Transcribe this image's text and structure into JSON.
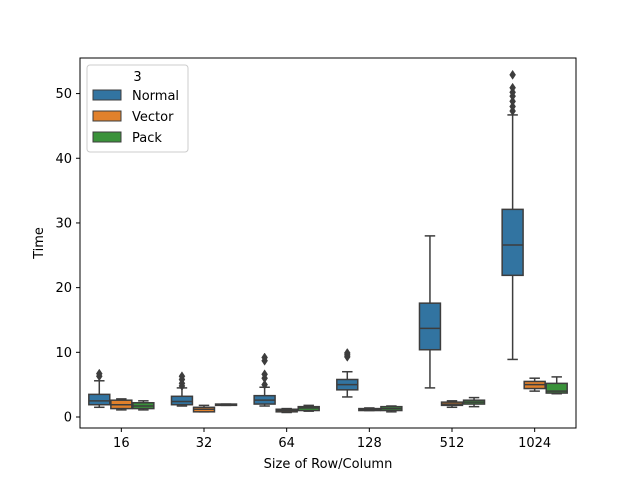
{
  "chart_data": {
    "type": "box",
    "xlabel": "Size of Row/Column",
    "ylabel": "Time",
    "categories": [
      "16",
      "32",
      "64",
      "128",
      "512",
      "1024"
    ],
    "ylim": [
      -1.7,
      55.5
    ],
    "yticks": [
      0,
      10,
      20,
      30,
      40,
      50
    ],
    "grid": false,
    "legend": {
      "title": "3",
      "placement": "top-left"
    },
    "series": [
      {
        "name": "Normal",
        "color": "#3274a1",
        "boxes": [
          {
            "q1": 1.9,
            "median": 2.5,
            "q3": 3.5,
            "whisker_low": 1.5,
            "whisker_high": 5.6,
            "outliers": [
              6.3,
              6.7
            ]
          },
          {
            "q1": 1.9,
            "median": 2.4,
            "q3": 3.2,
            "whisker_low": 1.7,
            "whisker_high": 4.5,
            "outliers": [
              4.8,
              5.2,
              5.8,
              6.3
            ]
          },
          {
            "q1": 2.0,
            "median": 2.6,
            "q3": 3.3,
            "whisker_low": 1.7,
            "whisker_high": 4.6,
            "outliers": [
              5.0,
              6.0,
              6.6,
              8.7,
              9.2
            ]
          },
          {
            "q1": 4.2,
            "median": 5.0,
            "q3": 5.8,
            "whisker_low": 3.1,
            "whisker_high": 7.0,
            "outliers": [
              9.3,
              9.6,
              9.9
            ]
          },
          {
            "q1": 10.4,
            "median": 13.7,
            "q3": 17.6,
            "whisker_low": 4.5,
            "whisker_high": 28.0,
            "outliers": []
          },
          {
            "q1": 21.9,
            "median": 26.6,
            "q3": 32.1,
            "whisker_low": 8.9,
            "whisker_high": 46.7,
            "outliers": [
              47.3,
              48.0,
              48.8,
              49.6,
              50.2,
              50.9,
              52.9
            ]
          }
        ]
      },
      {
        "name": "Vector",
        "color": "#e1812c",
        "boxes": [
          {
            "q1": 1.3,
            "median": 1.9,
            "q3": 2.6,
            "whisker_low": 1.1,
            "whisker_high": 2.8,
            "outliers": []
          },
          {
            "q1": 0.8,
            "median": 1.2,
            "q3": 1.5,
            "whisker_low": 0.8,
            "whisker_high": 1.8,
            "outliers": []
          },
          {
            "q1": 0.8,
            "median": 1.0,
            "q3": 1.2,
            "whisker_low": 0.7,
            "whisker_high": 1.3,
            "outliers": []
          },
          {
            "q1": 1.0,
            "median": 1.2,
            "q3": 1.3,
            "whisker_low": 1.0,
            "whisker_high": 1.4,
            "outliers": []
          },
          {
            "q1": 1.8,
            "median": 2.0,
            "q3": 2.3,
            "whisker_low": 1.5,
            "whisker_high": 2.5,
            "outliers": []
          },
          {
            "q1": 4.4,
            "median": 5.0,
            "q3": 5.5,
            "whisker_low": 4.0,
            "whisker_high": 6.0,
            "outliers": []
          }
        ]
      },
      {
        "name": "Pack",
        "color": "#3a923a",
        "boxes": [
          {
            "q1": 1.3,
            "median": 1.7,
            "q3": 2.2,
            "whisker_low": 1.1,
            "whisker_high": 2.5,
            "outliers": []
          },
          {
            "q1": 1.8,
            "median": 1.9,
            "q3": 2.0,
            "whisker_low": 1.8,
            "whisker_high": 2.0,
            "outliers": []
          },
          {
            "q1": 1.0,
            "median": 1.4,
            "q3": 1.6,
            "whisker_low": 0.9,
            "whisker_high": 1.8,
            "outliers": []
          },
          {
            "q1": 1.0,
            "median": 1.3,
            "q3": 1.6,
            "whisker_low": 0.8,
            "whisker_high": 1.7,
            "outliers": []
          },
          {
            "q1": 2.0,
            "median": 2.3,
            "q3": 2.6,
            "whisker_low": 1.6,
            "whisker_high": 3.0,
            "outliers": []
          },
          {
            "q1": 3.7,
            "median": 4.0,
            "q3": 5.2,
            "whisker_low": 3.6,
            "whisker_high": 6.2,
            "outliers": []
          }
        ]
      }
    ]
  }
}
